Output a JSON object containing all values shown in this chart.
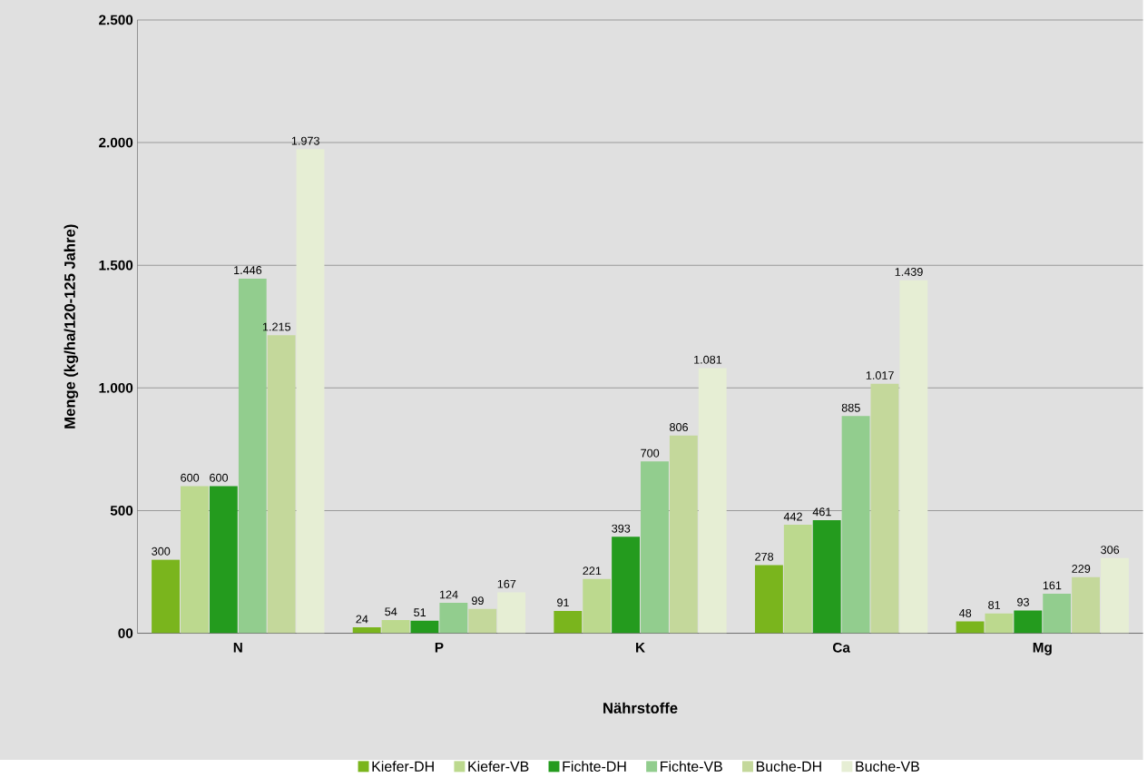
{
  "chart_data": {
    "type": "bar",
    "xlabel": "Nährstoffe",
    "ylabel": "Menge (kg/ha/120-125 Jahre)",
    "categories": [
      "N",
      "P",
      "K",
      "Ca",
      "Mg"
    ],
    "series": [
      {
        "name": "Kiefer-DH",
        "color": "#7ab51d",
        "values": [
          300,
          24,
          91,
          278,
          48
        ],
        "value_labels": [
          "300",
          "24",
          "91",
          "278",
          "48"
        ]
      },
      {
        "name": "Kiefer-VB",
        "color": "#bcd98e",
        "values": [
          600,
          54,
          221,
          442,
          81
        ],
        "value_labels": [
          "600",
          "54",
          "221",
          "442",
          "81"
        ]
      },
      {
        "name": "Fichte-DH",
        "color": "#249b1e",
        "values": [
          600,
          51,
          393,
          461,
          93
        ],
        "value_labels": [
          "600",
          "51",
          "393",
          "461",
          "93"
        ]
      },
      {
        "name": "Fichte-VB",
        "color": "#92cd8e",
        "values": [
          1446,
          124,
          700,
          885,
          161
        ],
        "value_labels": [
          "1.446",
          "124",
          "700",
          "885",
          "161"
        ]
      },
      {
        "name": "Buche-DH",
        "color": "#c4d89b",
        "values": [
          1215,
          99,
          806,
          1017,
          229
        ],
        "value_labels": [
          "1.215",
          "99",
          "806",
          "1.017",
          "229"
        ]
      },
      {
        "name": "Buche-VB",
        "color": "#e6eed4",
        "values": [
          1973,
          167,
          1081,
          1439,
          306
        ],
        "value_labels": [
          "1.973",
          "167",
          "1.081",
          "1.439",
          "306"
        ]
      }
    ],
    "ylim": [
      0,
      2500
    ],
    "yticks": [
      {
        "value": 0,
        "label": "00"
      },
      500,
      {
        "value": 1000,
        "label": "1.000"
      },
      {
        "value": 1500,
        "label": "1.500"
      },
      {
        "value": 2000,
        "label": "2.000"
      },
      {
        "value": 2500,
        "label": "2.500"
      }
    ],
    "grid": "y",
    "legend": "bottom"
  }
}
